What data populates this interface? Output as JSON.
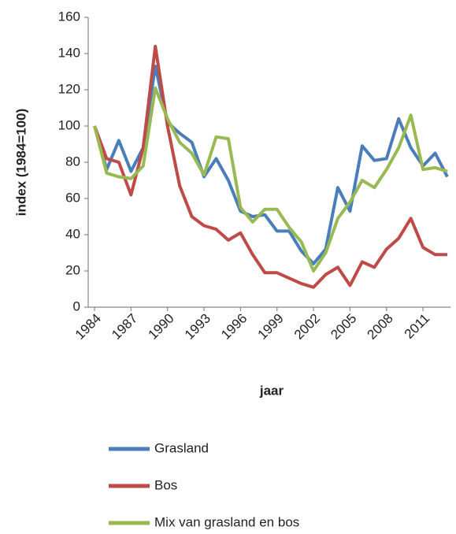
{
  "chart_data": {
    "type": "line",
    "x_label": "jaar",
    "y_label": "index (1984=100)",
    "x": [
      1984,
      1985,
      1986,
      1987,
      1988,
      1989,
      1990,
      1991,
      1992,
      1993,
      1994,
      1995,
      1996,
      1997,
      1998,
      1999,
      2000,
      2001,
      2002,
      2003,
      2004,
      2005,
      2006,
      2007,
      2008,
      2009,
      2010,
      2011,
      2012,
      2013
    ],
    "series": [
      {
        "name": "Grasland",
        "color": "#4a7ebb",
        "values": [
          100,
          76,
          92,
          75,
          88,
          133,
          102,
          96,
          91,
          72,
          82,
          70,
          53,
          50,
          51,
          42,
          42,
          31,
          24,
          32,
          66,
          53,
          89,
          81,
          82,
          104,
          88,
          78,
          85,
          72
        ]
      },
      {
        "name": "Bos",
        "color": "#be4b48",
        "values": [
          100,
          82,
          80,
          62,
          88,
          144,
          100,
          67,
          50,
          45,
          43,
          37,
          41,
          29,
          19,
          19,
          16,
          13,
          11,
          18,
          22,
          12,
          25,
          22,
          32,
          38,
          49,
          33,
          29,
          29
        ]
      },
      {
        "name": "Mix van grasland en bos",
        "color": "#98b954",
        "values": [
          100,
          74,
          72,
          71,
          78,
          121,
          104,
          91,
          85,
          73,
          94,
          93,
          55,
          47,
          54,
          54,
          44,
          36,
          20,
          30,
          49,
          58,
          70,
          66,
          76,
          88,
          106,
          76,
          77,
          75
        ]
      }
    ],
    "xlim": [
      1984,
      2013
    ],
    "xticks": [
      1984,
      1987,
      1990,
      1993,
      1996,
      1999,
      2002,
      2005,
      2008,
      2011
    ],
    "ylim": [
      0,
      160
    ],
    "yticks": [
      0,
      20,
      40,
      60,
      80,
      100,
      120,
      140,
      160
    ],
    "grid": false,
    "legend": "bottom"
  }
}
